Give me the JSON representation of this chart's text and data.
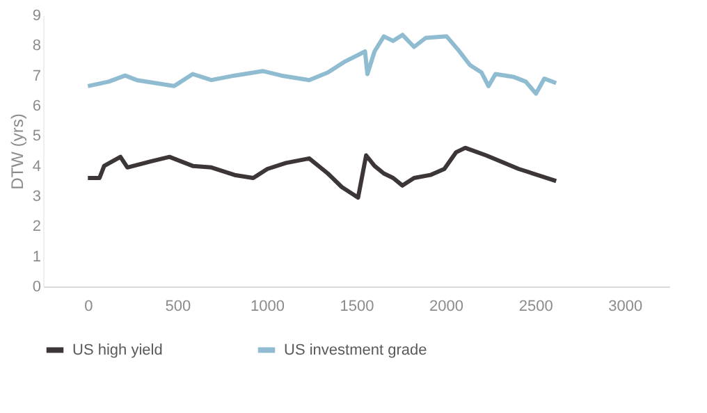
{
  "chart_data": {
    "type": "line",
    "ylabel": "DTW (yrs)",
    "xlim": [
      -250,
      3250
    ],
    "xticks": [
      0,
      500,
      1000,
      1500,
      2000,
      2500,
      3000
    ],
    "ylim": [
      0,
      9
    ],
    "yticks": [
      0,
      1,
      2,
      3,
      4,
      5,
      6,
      7,
      8,
      9
    ],
    "grid": false,
    "legend": "bottom",
    "marker": "none",
    "line_style": "solid",
    "series": [
      {
        "name": "US high yield",
        "color": "#3d3637",
        "x": [
          0,
          65,
          91,
          182,
          221,
          352,
          456,
          586,
          690,
          820,
          924,
          1003,
          1107,
          1237,
          1341,
          1419,
          1510,
          1555,
          1602,
          1654,
          1706,
          1758,
          1823,
          1914,
          1992,
          2057,
          2109,
          2226,
          2408,
          2617
        ],
        "values": [
          3.6,
          3.6,
          4.0,
          4.3,
          3.95,
          4.15,
          4.3,
          4.0,
          3.95,
          3.7,
          3.6,
          3.9,
          4.1,
          4.25,
          3.75,
          3.3,
          2.95,
          4.35,
          4.0,
          3.75,
          3.6,
          3.35,
          3.6,
          3.7,
          3.9,
          4.45,
          4.6,
          4.35,
          3.9,
          3.5
        ]
      },
      {
        "name": "US investment grade",
        "color": "#8fbcd0",
        "x": [
          0,
          117,
          208,
          273,
          378,
          482,
          586,
          690,
          820,
          977,
          1081,
          1237,
          1341,
          1432,
          1549,
          1562,
          1602,
          1654,
          1706,
          1758,
          1823,
          1888,
          2005,
          2070,
          2135,
          2200,
          2239,
          2278,
          2382,
          2447,
          2504,
          2551,
          2617
        ],
        "values": [
          6.65,
          6.8,
          7.0,
          6.85,
          6.75,
          6.65,
          7.05,
          6.85,
          7.0,
          7.15,
          7.0,
          6.85,
          7.1,
          7.45,
          7.8,
          7.05,
          7.8,
          8.3,
          8.15,
          8.35,
          7.95,
          8.25,
          8.3,
          7.85,
          7.35,
          7.1,
          6.65,
          7.05,
          6.95,
          6.8,
          6.4,
          6.9,
          6.75
        ]
      }
    ]
  }
}
